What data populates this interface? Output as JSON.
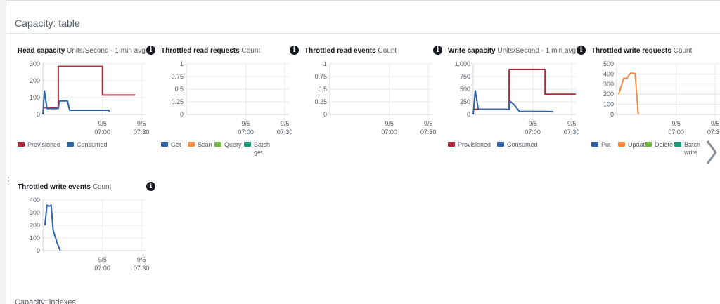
{
  "section": {
    "title": "Capacity: table"
  },
  "charts": [
    {
      "title": "Read capacity",
      "unit": "Units/Second - 1 min avg",
      "info_icon": "info-icon",
      "ymax": 300,
      "yticks": [
        "300",
        "200",
        "100",
        "0"
      ],
      "xticks": [
        {
          "d": "9/5",
          "t": "07:00"
        },
        {
          "d": "9/5",
          "t": "07:30"
        }
      ],
      "series": [
        {
          "name": "Provisioned",
          "color": "#b0293a",
          "points": [
            [
              0,
              40
            ],
            [
              0.15,
              40
            ],
            [
              0.15,
              285
            ],
            [
              0.58,
              285
            ],
            [
              0.58,
              115
            ],
            [
              0.9,
              115
            ]
          ]
        },
        {
          "name": "Consumed",
          "color": "#2e63a7",
          "points": [
            [
              0,
              0
            ],
            [
              0.015,
              140
            ],
            [
              0.04,
              35
            ],
            [
              0.15,
              35
            ],
            [
              0.16,
              80
            ],
            [
              0.24,
              80
            ],
            [
              0.26,
              25
            ],
            [
              0.64,
              25
            ],
            [
              0.65,
              15
            ]
          ]
        }
      ]
    },
    {
      "title": "Throttled read requests",
      "unit": "Count",
      "info_icon": "info-icon",
      "ymax": 1,
      "yticks": [
        "1",
        "0.75",
        "0.5",
        "0.25",
        "0"
      ],
      "xticks": [
        {
          "d": "9/5",
          "t": "07:00"
        },
        {
          "d": "9/5",
          "t": "07:30"
        }
      ],
      "series": [
        {
          "name": "Get",
          "color": "#2e63a7",
          "points": []
        },
        {
          "name": "Scan",
          "color": "#f58b43",
          "points": []
        },
        {
          "name": "Query",
          "color": "#6fb43f",
          "points": []
        },
        {
          "name": "Batch get",
          "color": "#1b9e77",
          "points": []
        }
      ]
    },
    {
      "title": "Throttled read events",
      "unit": "Count",
      "info_icon": "info-icon",
      "ymax": 1,
      "yticks": [
        "1",
        "0.75",
        "0.5",
        "0.25",
        "0"
      ],
      "xticks": [
        {
          "d": "9/5",
          "t": "07:00"
        },
        {
          "d": "9/5",
          "t": "07:30"
        }
      ],
      "series": []
    },
    {
      "title": "Write capacity",
      "unit": "Units/Second - 1 min avg",
      "info_icon": "info-icon",
      "ymax": 1000,
      "yticks": [
        "1,000",
        "750",
        "500",
        "250",
        "0"
      ],
      "xticks": [
        {
          "d": "9/5",
          "t": "07:00"
        },
        {
          "d": "9/5",
          "t": "07:30"
        }
      ],
      "series": [
        {
          "name": "Provisioned",
          "color": "#b0293a",
          "points": [
            [
              0,
              100
            ],
            [
              0.35,
              100
            ],
            [
              0.35,
              890
            ],
            [
              0.7,
              890
            ],
            [
              0.7,
              400
            ],
            [
              1,
              400
            ]
          ]
        },
        {
          "name": "Consumed",
          "color": "#2e63a7",
          "points": [
            [
              0,
              0
            ],
            [
              0.02,
              470
            ],
            [
              0.05,
              100
            ],
            [
              0.35,
              100
            ],
            [
              0.36,
              260
            ],
            [
              0.4,
              190
            ],
            [
              0.45,
              60
            ],
            [
              0.75,
              60
            ],
            [
              0.78,
              50
            ]
          ]
        }
      ]
    },
    {
      "title": "Throttled write requests",
      "unit": "Count",
      "info_icon": "info-icon",
      "ymax": 500,
      "yticks": [
        "500",
        "400",
        "300",
        "200",
        "100",
        "0"
      ],
      "xticks": [
        {
          "d": "9/5",
          "t": "07:00"
        },
        {
          "d": "9/5",
          "t": "07:30"
        }
      ],
      "series": [
        {
          "name": "Put",
          "color": "#2e63a7",
          "points": []
        },
        {
          "name": "Update",
          "color": "#f58b43",
          "points": [
            [
              0.02,
              200
            ],
            [
              0.07,
              360
            ],
            [
              0.1,
              355
            ],
            [
              0.12,
              390
            ],
            [
              0.14,
              410
            ],
            [
              0.18,
              405
            ],
            [
              0.21,
              0
            ]
          ]
        },
        {
          "name": "Delete",
          "color": "#6fb43f",
          "points": []
        },
        {
          "name": "Batch write",
          "color": "#1b9e77",
          "points": []
        }
      ]
    },
    {
      "title": "Throttled write events",
      "unit": "Count",
      "info_icon": "info-icon",
      "ymax": 400,
      "yticks": [
        "400",
        "300",
        "200",
        "100",
        "0"
      ],
      "xticks": [
        {
          "d": "9/5",
          "t": "07:00"
        },
        {
          "d": "9/5",
          "t": "07:30"
        }
      ],
      "series": [
        {
          "name": "",
          "color": "#2e63a7",
          "points": [
            [
              0.02,
              200
            ],
            [
              0.04,
              360
            ],
            [
              0.06,
              350
            ],
            [
              0.08,
              360
            ],
            [
              0.1,
              160
            ],
            [
              0.14,
              60
            ],
            [
              0.17,
              0
            ]
          ]
        }
      ]
    }
  ],
  "next_icon": "chevron-right-icon",
  "bottom": {
    "text": "Capacity: indexes"
  }
}
